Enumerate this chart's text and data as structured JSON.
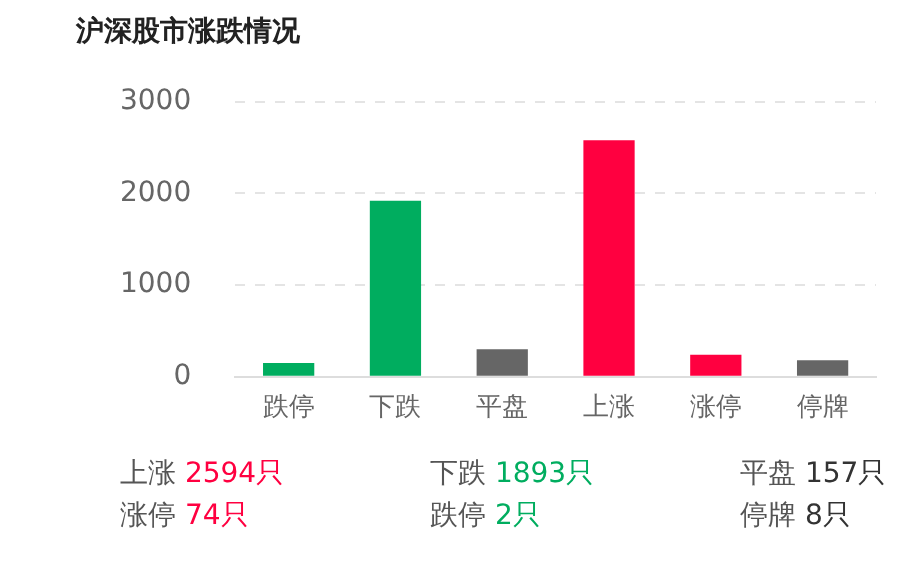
{
  "chart_data": {
    "type": "bar",
    "title": "沪深股市涨跌情况",
    "categories": [
      "跌停",
      "下跌",
      "平盘",
      "上涨",
      "涨停",
      "停牌"
    ],
    "values": [
      150,
      1920,
      300,
      2580,
      240,
      180
    ],
    "colors": [
      "#00ad5f",
      "#00ad5f",
      "#666666",
      "#ff0040",
      "#ff0040",
      "#666666"
    ],
    "ylim": [
      0,
      3000
    ],
    "yticks": [
      0,
      1000,
      2000,
      3000
    ],
    "grid": "y",
    "legend": false,
    "annotations": [
      "上涨 2594只",
      "下跌 1893只",
      "平盘 157只",
      "涨停 74只",
      "跌停 2只",
      "停牌 8只"
    ]
  }
}
